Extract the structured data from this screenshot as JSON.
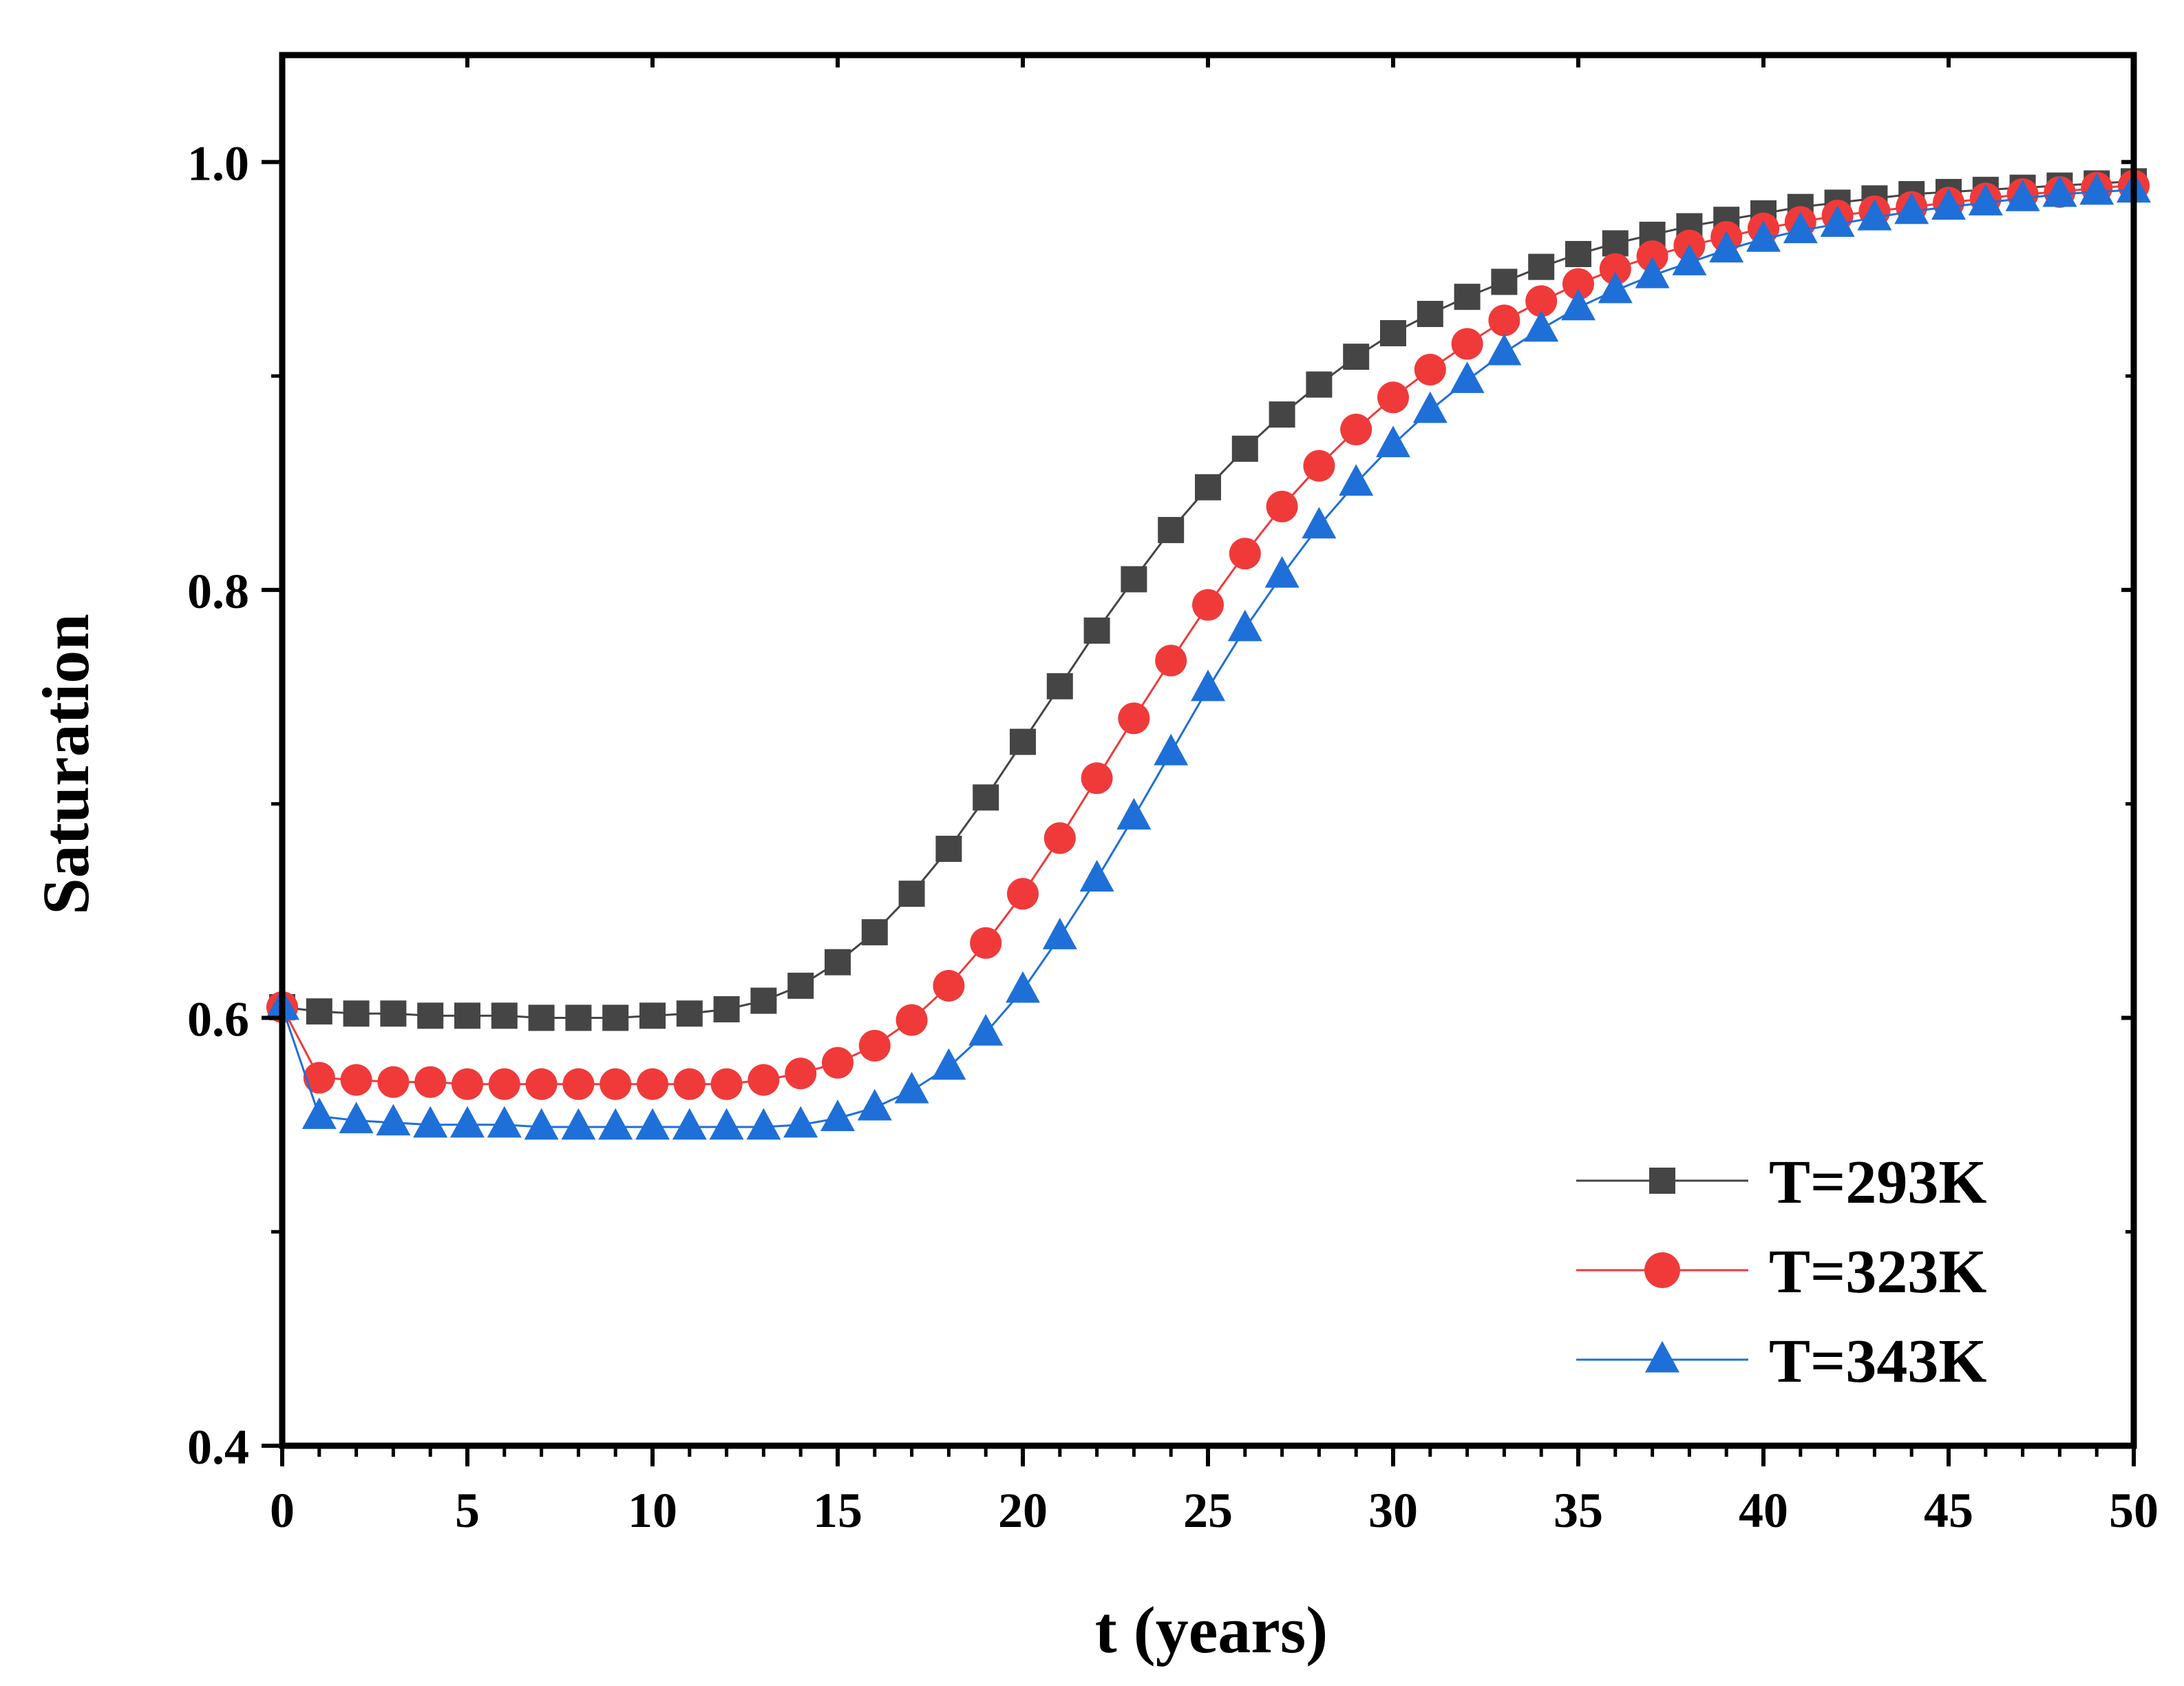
{
  "chart_data": {
    "type": "line",
    "title": "",
    "xlabel": "t (years)",
    "ylabel": "Saturation",
    "xlim": [
      0,
      50
    ],
    "ylim": [
      0.4,
      1.05
    ],
    "xticks": [
      0,
      5,
      10,
      15,
      20,
      25,
      30,
      35,
      40,
      45,
      50
    ],
    "xtick_labels": [
      "0",
      "5",
      "10",
      "15",
      "20",
      "25",
      "30",
      "35",
      "40",
      "45",
      "50"
    ],
    "yticks": [
      0.4,
      0.6,
      0.8,
      1.0
    ],
    "ytick_labels": [
      "0.4",
      "0.6",
      "0.8",
      "1.0"
    ],
    "y_minor_ticks": [
      0.5,
      0.7,
      0.9
    ],
    "grid": false,
    "legend_position": "bottom-right",
    "x": [
      0,
      1,
      2,
      3,
      4,
      5,
      6,
      7,
      8,
      9,
      10,
      11,
      12,
      13,
      14,
      15,
      16,
      17,
      18,
      19,
      20,
      21,
      22,
      23,
      24,
      25,
      26,
      27,
      28,
      29,
      30,
      31,
      32,
      33,
      34,
      35,
      36,
      37,
      38,
      39,
      40,
      41,
      42,
      43,
      44,
      45,
      46,
      47,
      48,
      49,
      50
    ],
    "series": [
      {
        "name": "T=293K",
        "color": "#454545",
        "marker": "square",
        "values": [
          0.605,
          0.603,
          0.602,
          0.602,
          0.601,
          0.601,
          0.601,
          0.6,
          0.6,
          0.6,
          0.601,
          0.602,
          0.604,
          0.608,
          0.615,
          0.626,
          0.64,
          0.658,
          0.679,
          0.703,
          0.729,
          0.755,
          0.781,
          0.805,
          0.828,
          0.848,
          0.866,
          0.882,
          0.896,
          0.909,
          0.92,
          0.929,
          0.937,
          0.944,
          0.951,
          0.957,
          0.962,
          0.966,
          0.97,
          0.973,
          0.976,
          0.979,
          0.981,
          0.983,
          0.985,
          0.986,
          0.987,
          0.988,
          0.989,
          0.99,
          0.991
        ]
      },
      {
        "name": "T=323K",
        "color": "#f03a3a",
        "marker": "circle",
        "values": [
          0.605,
          0.572,
          0.571,
          0.57,
          0.57,
          0.569,
          0.569,
          0.569,
          0.569,
          0.569,
          0.569,
          0.569,
          0.569,
          0.571,
          0.574,
          0.579,
          0.587,
          0.599,
          0.615,
          0.635,
          0.658,
          0.684,
          0.712,
          0.74,
          0.767,
          0.793,
          0.817,
          0.839,
          0.858,
          0.875,
          0.89,
          0.903,
          0.915,
          0.926,
          0.935,
          0.943,
          0.95,
          0.956,
          0.961,
          0.965,
          0.969,
          0.972,
          0.975,
          0.977,
          0.979,
          0.981,
          0.983,
          0.985,
          0.986,
          0.988,
          0.989
        ]
      },
      {
        "name": "T=343K",
        "color": "#1f6fd8",
        "marker": "triangle",
        "values": [
          0.605,
          0.554,
          0.552,
          0.551,
          0.55,
          0.55,
          0.55,
          0.549,
          0.549,
          0.549,
          0.549,
          0.549,
          0.549,
          0.549,
          0.55,
          0.553,
          0.558,
          0.566,
          0.577,
          0.593,
          0.613,
          0.638,
          0.665,
          0.694,
          0.724,
          0.754,
          0.782,
          0.807,
          0.83,
          0.85,
          0.868,
          0.884,
          0.898,
          0.911,
          0.922,
          0.932,
          0.94,
          0.947,
          0.953,
          0.959,
          0.964,
          0.968,
          0.971,
          0.974,
          0.977,
          0.979,
          0.981,
          0.983,
          0.985,
          0.986,
          0.987
        ]
      }
    ]
  }
}
